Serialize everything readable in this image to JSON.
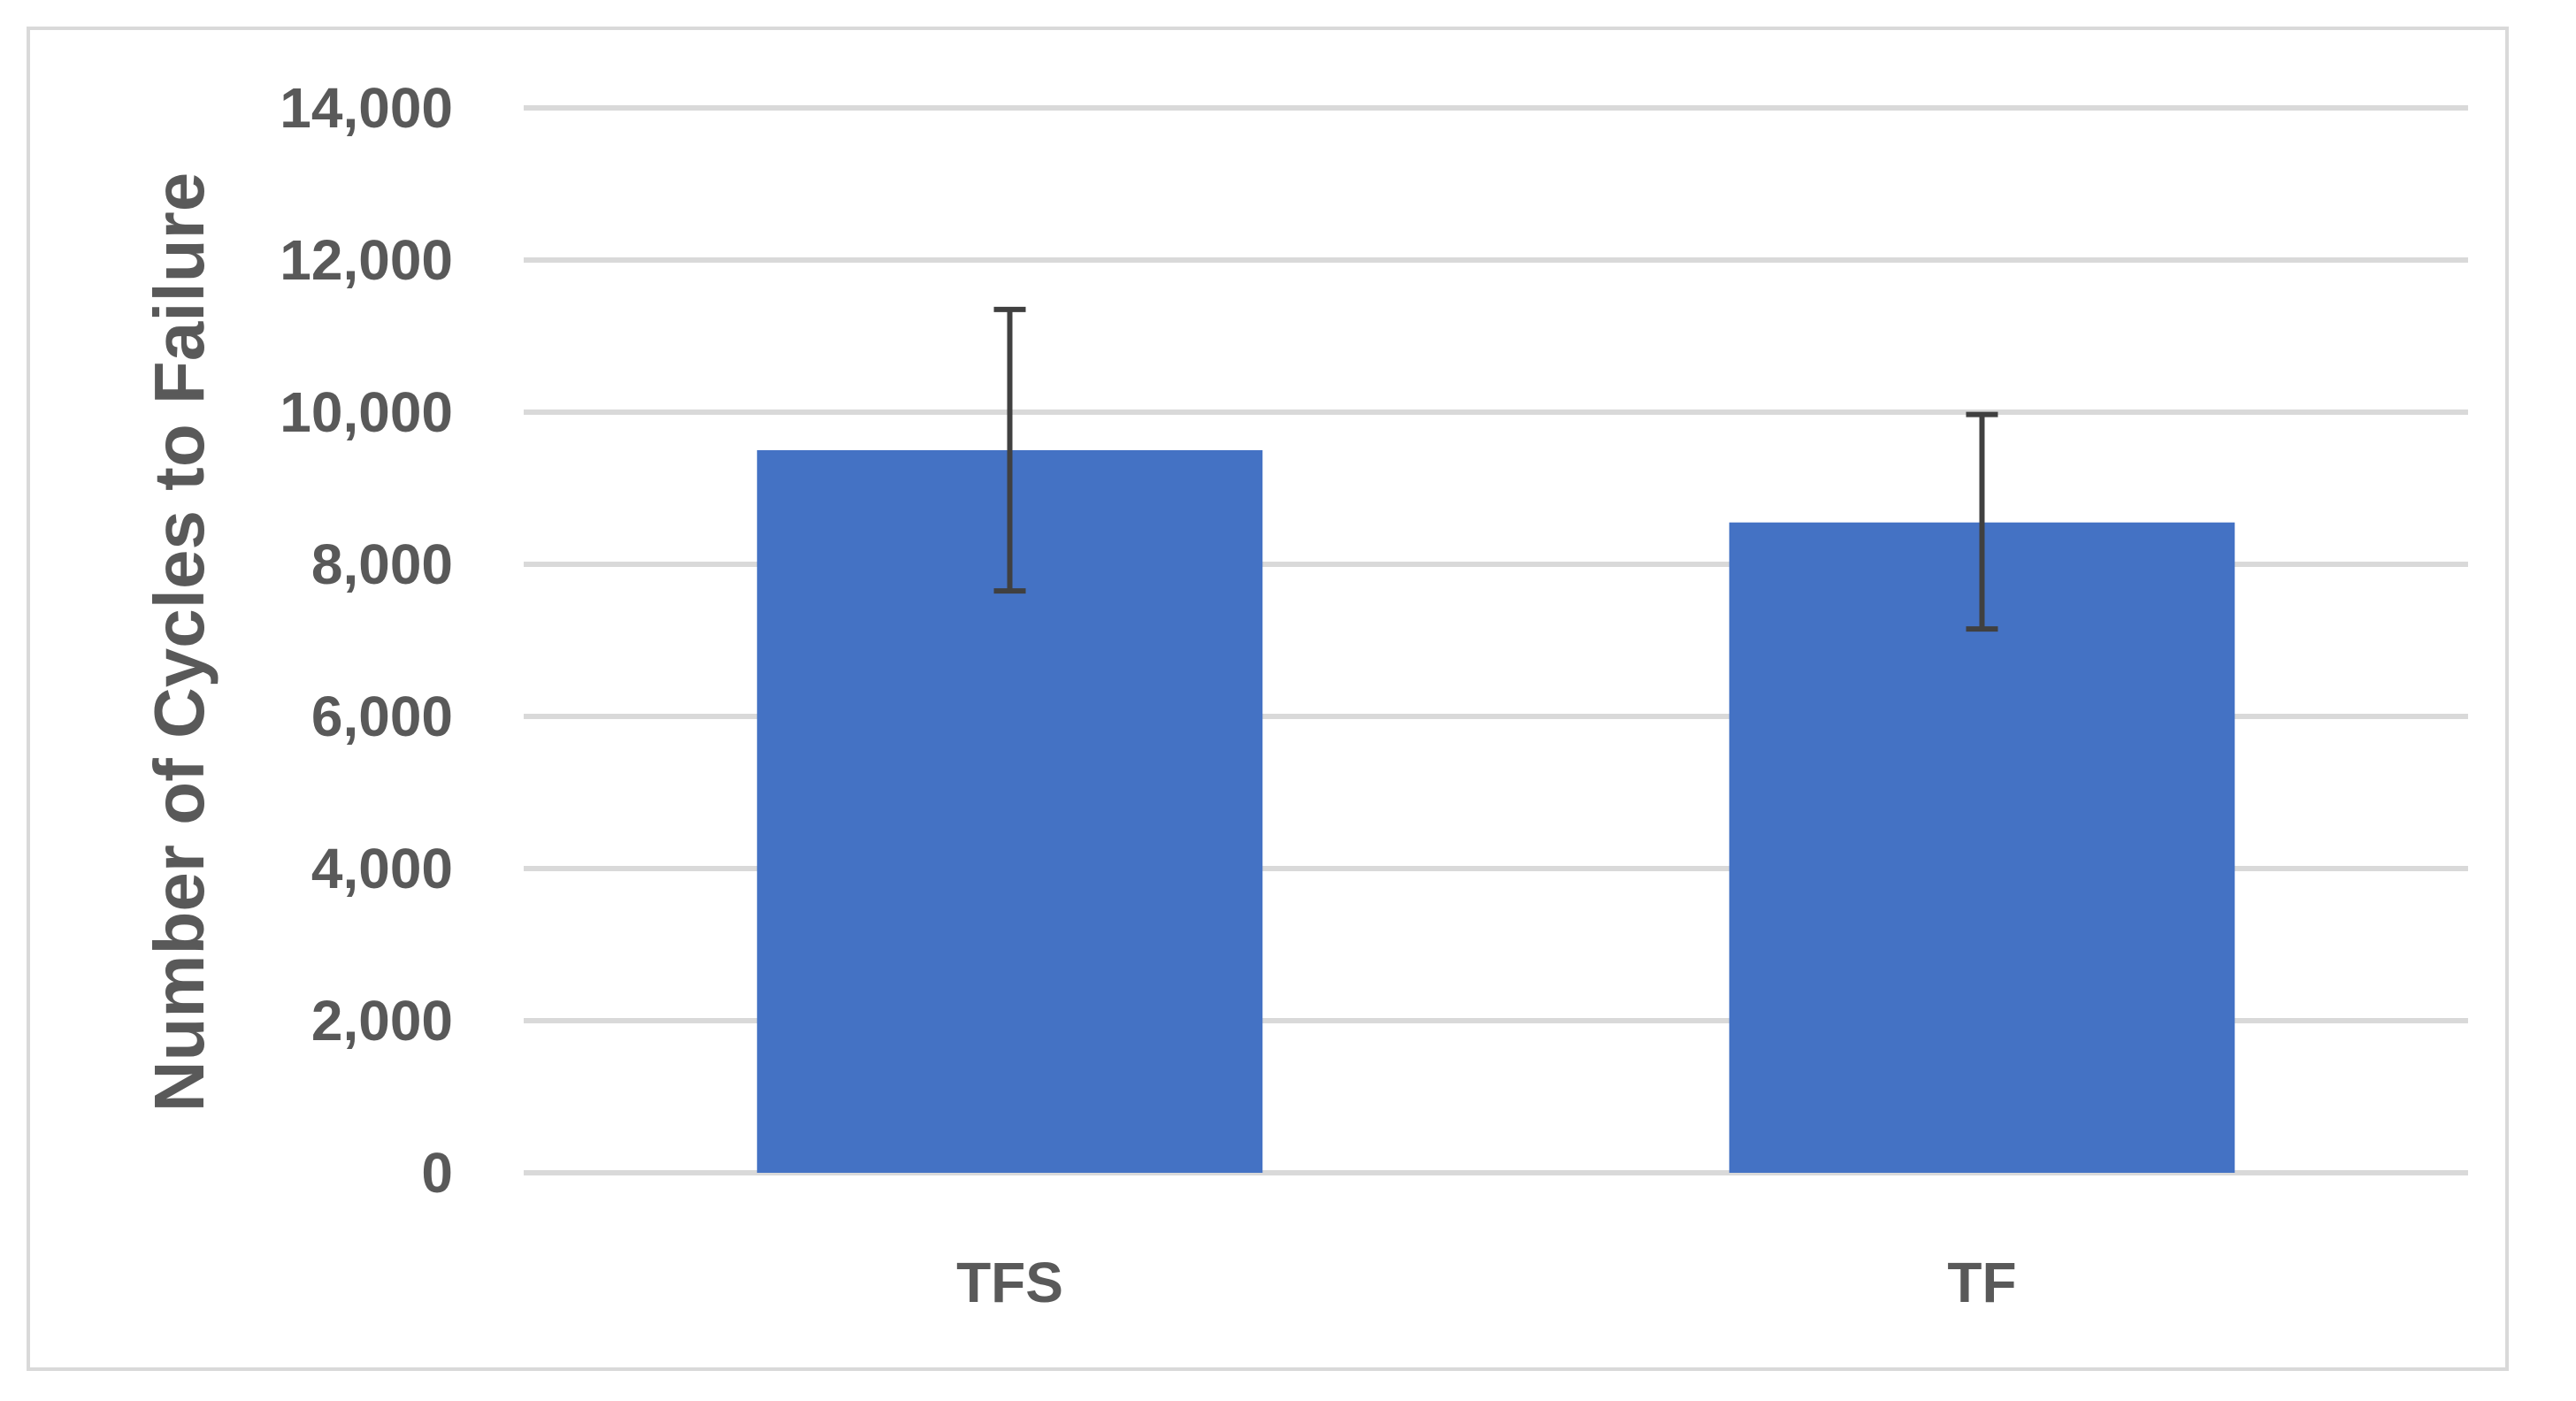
{
  "chart_data": {
    "type": "bar",
    "title": "",
    "xlabel": "",
    "ylabel": "Number of Cycles to Failure",
    "categories": [
      "TFS",
      "TF"
    ],
    "values": [
      9500,
      8550
    ],
    "error_bars": {
      "upper": [
        11350,
        9970
      ],
      "lower": [
        7650,
        7150
      ]
    },
    "ylim": [
      0,
      14000
    ],
    "y_ticks": [
      0,
      2000,
      4000,
      6000,
      8000,
      10000,
      12000,
      14000
    ],
    "y_tick_labels": [
      "0",
      "2,000",
      "4,000",
      "6,000",
      "8,000",
      "10,000",
      "12,000",
      "14,000"
    ],
    "grid": true,
    "legend": "none",
    "colors": {
      "bar": "#4472c4",
      "error_bar": "#404040",
      "grid": "#d9d9d9",
      "text": "#595959"
    }
  }
}
